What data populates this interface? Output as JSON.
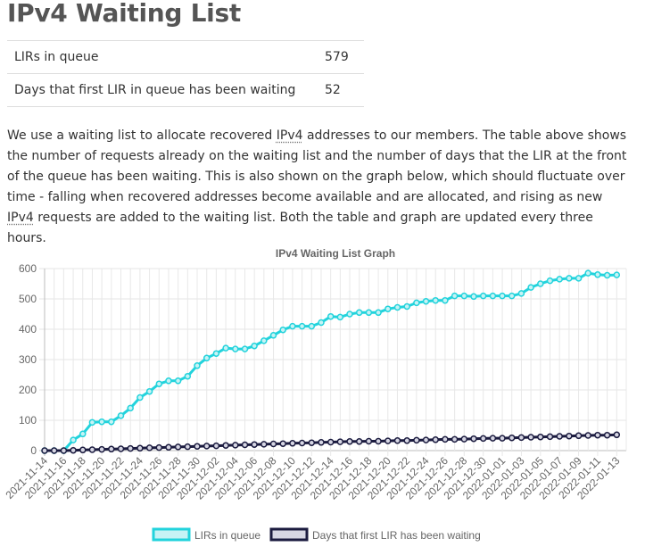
{
  "page": {
    "title": "IPv4 Waiting List",
    "stats": [
      {
        "label": "LIRs in queue",
        "value": "579"
      },
      {
        "label": "Days that first LIR in queue has been waiting",
        "value": "52"
      }
    ],
    "description": {
      "p1": "We use a waiting list to allocate recovered ",
      "abbr1": "IPv4",
      "p2": " addresses to our members. The table above shows the number of requests already on the waiting list and the number of days that the LIR at the front of the queue has been waiting. This is also shown on the graph below, which should fluctuate over time - falling when recovered addresses become available and are allocated, and rising as new ",
      "abbr2": "IPv4",
      "p3": " requests are added to the waiting list. Both the table and graph are updated every three hours."
    }
  },
  "chart_data": {
    "type": "line",
    "title": "IPv4 Waiting List Graph",
    "ylim": [
      0,
      600
    ],
    "yticks": [
      0,
      100,
      200,
      300,
      400,
      500,
      600
    ],
    "grid": true,
    "legend_position": "bottom",
    "x_start": "2021-11-14",
    "x_end": "2022-01-14",
    "x_ticks": [
      "2021-11-14",
      "2021-11-16",
      "2021-11-18",
      "2021-11-20",
      "2021-11-22",
      "2021-11-24",
      "2021-11-26",
      "2021-11-28",
      "2021-11-30",
      "2021-12-02",
      "2021-12-04",
      "2021-12-06",
      "2021-12-08",
      "2021-12-10",
      "2021-12-12",
      "2021-12-14",
      "2021-12-16",
      "2021-12-18",
      "2021-12-20",
      "2021-12-22",
      "2021-12-24",
      "2021-12-26",
      "2021-12-28",
      "2021-12-30",
      "2022-01-01",
      "2022-01-03",
      "2022-01-05",
      "2022-01-07",
      "2022-01-09",
      "2022-01-11",
      "2022-01-13"
    ],
    "series": [
      {
        "name": "LIRs in queue",
        "color": "#22d3dc",
        "fill": "#c6f3f5",
        "values": [
          0,
          0,
          0,
          35,
          55,
          93,
          95,
          95,
          115,
          140,
          175,
          195,
          220,
          230,
          230,
          245,
          280,
          305,
          320,
          338,
          335,
          335,
          345,
          362,
          380,
          398,
          410,
          410,
          410,
          422,
          442,
          440,
          450,
          455,
          455,
          455,
          467,
          472,
          475,
          487,
          492,
          495,
          495,
          510,
          510,
          508,
          510,
          510,
          510,
          510,
          518,
          538,
          550,
          560,
          565,
          568,
          568,
          585,
          580,
          578,
          579
        ]
      },
      {
        "name": "Days that first LIR has been waiting",
        "color": "#1b1b3f",
        "fill": "#d6d6e3",
        "values": [
          0,
          0,
          0,
          1,
          2,
          3,
          4,
          5,
          6,
          7,
          8,
          9,
          10,
          11,
          12,
          13,
          14,
          15,
          16,
          17,
          18,
          19,
          20,
          21,
          22,
          23,
          24,
          25,
          26,
          27,
          28,
          29,
          30,
          30,
          31,
          31,
          32,
          33,
          33,
          34,
          35,
          36,
          37,
          37,
          38,
          39,
          40,
          41,
          41,
          42,
          43,
          44,
          45,
          46,
          47,
          48,
          49,
          50,
          51,
          51,
          52
        ]
      }
    ]
  }
}
